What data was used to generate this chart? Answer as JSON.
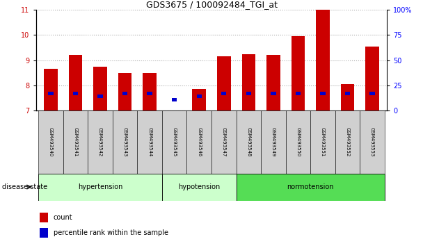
{
  "title": "GDS3675 / 100092484_TGI_at",
  "samples": [
    "GSM493540",
    "GSM493541",
    "GSM493542",
    "GSM493543",
    "GSM493544",
    "GSM493545",
    "GSM493546",
    "GSM493547",
    "GSM493548",
    "GSM493549",
    "GSM493550",
    "GSM493551",
    "GSM493552",
    "GSM493553"
  ],
  "count_values": [
    8.65,
    9.2,
    8.75,
    8.5,
    8.5,
    7.02,
    7.85,
    9.15,
    9.25,
    9.2,
    9.95,
    11.0,
    8.05,
    9.55
  ],
  "percentile_values": [
    7.62,
    7.62,
    7.5,
    7.62,
    7.62,
    7.38,
    7.5,
    7.62,
    7.62,
    7.62,
    7.62,
    7.62,
    7.62,
    7.62
  ],
  "ylim_left": [
    7,
    11
  ],
  "yticks_left": [
    7,
    8,
    9,
    10,
    11
  ],
  "yticks_right_pct": [
    0,
    25,
    50,
    75,
    100
  ],
  "ytick_labels_right": [
    "0",
    "25",
    "50",
    "75",
    "100%"
  ],
  "bar_width": 0.55,
  "count_color": "#cc0000",
  "percentile_color": "#0000cc",
  "group_defs": [
    {
      "start": 0,
      "end": 5,
      "label": "hypertension",
      "color": "#ccffcc"
    },
    {
      "start": 5,
      "end": 8,
      "label": "hypotension",
      "color": "#ccffcc"
    },
    {
      "start": 8,
      "end": 14,
      "label": "normotension",
      "color": "#55dd55"
    }
  ],
  "disease_state_label": "disease state",
  "legend_count_label": "count",
  "legend_pct_label": "percentile rank within the sample",
  "tick_label_color": "#c8c8c8",
  "title_fontsize": 9,
  "axis_fontsize": 7,
  "sample_fontsize": 5,
  "group_fontsize": 7,
  "legend_fontsize": 7
}
